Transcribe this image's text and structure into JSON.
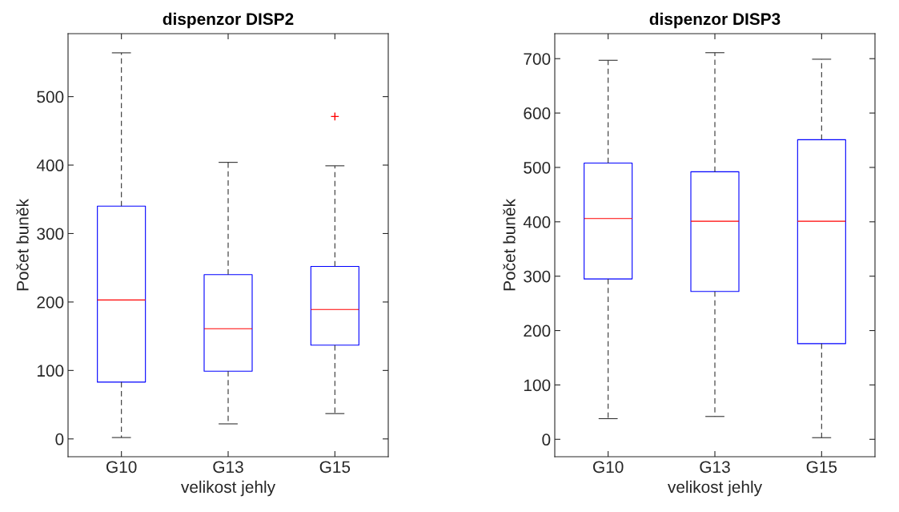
{
  "chart_data": [
    {
      "type": "box",
      "title": "dispenzor DISP2",
      "xlabel": "velikost jehly",
      "ylabel": "Počet buněk",
      "categories": [
        "G10",
        "G13",
        "G15"
      ],
      "boxes": [
        {
          "low": 2,
          "q1": 83,
          "median": 203,
          "q3": 340,
          "high": 564
        },
        {
          "low": 22,
          "q1": 99,
          "median": 161,
          "q3": 240,
          "high": 404
        },
        {
          "low": 37,
          "q1": 137,
          "median": 189,
          "q3": 252,
          "high": 399,
          "outliers": [
            471
          ]
        }
      ],
      "ylim": [
        -26,
        592
      ],
      "yticks": [
        0,
        100,
        200,
        300,
        400,
        500
      ],
      "grid": false,
      "legend": false
    },
    {
      "type": "box",
      "title": "dispenzor DISP3",
      "xlabel": "velikost jehly",
      "ylabel": "Počet buněk",
      "categories": [
        "G10",
        "G13",
        "G15"
      ],
      "boxes": [
        {
          "low": 38,
          "q1": 295,
          "median": 406,
          "q3": 508,
          "high": 697
        },
        {
          "low": 42,
          "q1": 272,
          "median": 401,
          "q3": 492,
          "high": 711
        },
        {
          "low": 3,
          "q1": 176,
          "median": 401,
          "q3": 551,
          "high": 699
        }
      ],
      "ylim": [
        -32,
        746
      ],
      "yticks": [
        0,
        100,
        200,
        300,
        400,
        500,
        600,
        700
      ],
      "grid": false,
      "legend": false
    }
  ]
}
